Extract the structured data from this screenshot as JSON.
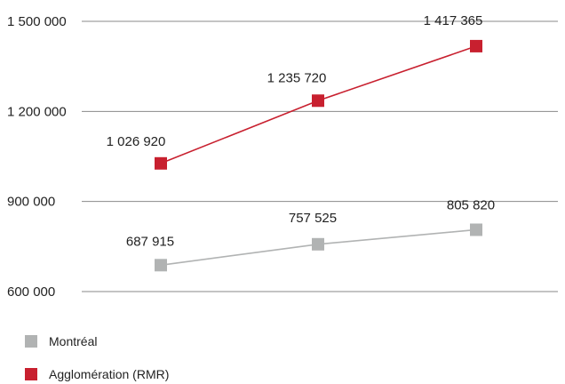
{
  "chart_data": {
    "type": "line",
    "title": "",
    "xlabel": "",
    "ylabel": "",
    "x": [
      1,
      2,
      3
    ],
    "ylim": [
      600000,
      1500000
    ],
    "y_ticks": [
      600000,
      900000,
      1200000,
      1500000
    ],
    "y_tick_labels": [
      "600 000",
      "900 000",
      "1 200 000",
      "1 500 000"
    ],
    "grid": "horizontal",
    "legend_position": "bottom-left",
    "series": [
      {
        "name": "Montréal",
        "color": "#b1b3b3",
        "values": [
          687915,
          757525,
          805820
        ],
        "labels": [
          "687 915",
          "757 525",
          "805 820"
        ]
      },
      {
        "name": "Agglomération (RMR)",
        "color": "#c8202f",
        "values": [
          1026920,
          1235720,
          1417365
        ],
        "labels": [
          "1 026 920",
          "1 235 720",
          "1 417 365"
        ]
      }
    ]
  }
}
